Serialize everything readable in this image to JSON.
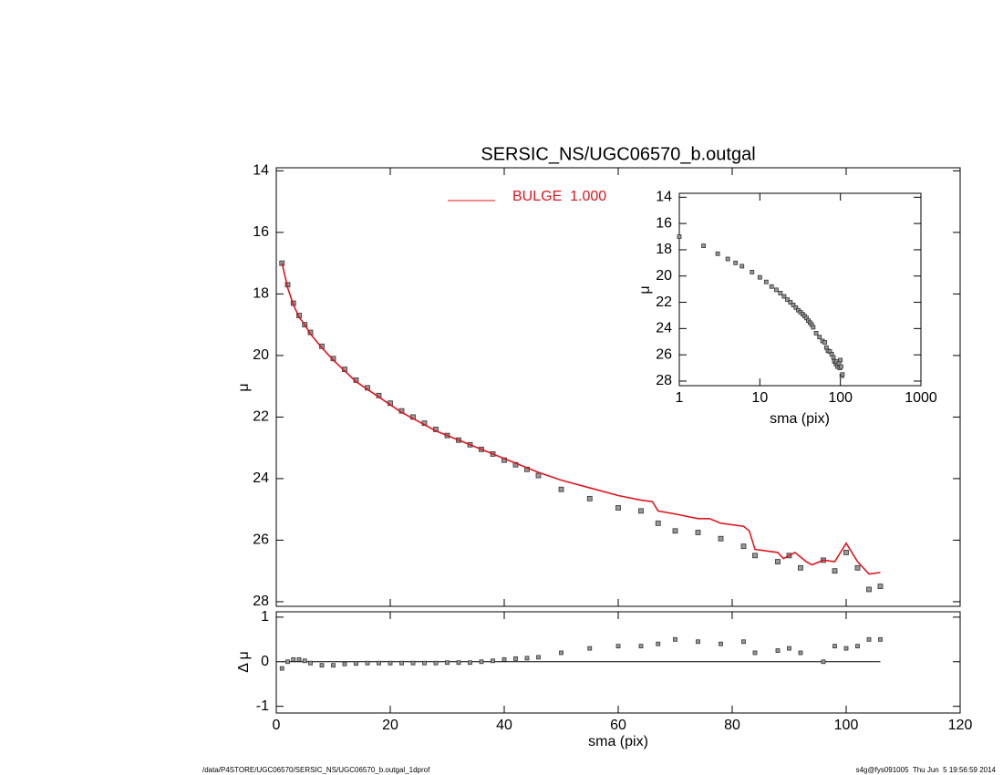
{
  "chart_data": [
    {
      "type": "line",
      "title": "SERSIC_NS/UGC06570_b.outgal",
      "ylabel": "μ",
      "xlim": [
        0,
        120
      ],
      "ylim": [
        28.15,
        13.9
      ],
      "yticks": [
        14,
        16,
        18,
        20,
        22,
        24,
        26,
        28
      ],
      "legend": "top",
      "series": [
        {
          "style": "squares",
          "color": "#999999",
          "x": [
            1,
            2,
            3,
            4,
            5,
            6,
            8,
            10,
            12,
            14,
            16,
            18,
            20,
            22,
            24,
            26,
            28,
            30,
            32,
            34,
            36,
            38,
            40,
            42,
            44,
            46,
            50,
            55,
            60,
            64,
            67,
            70,
            74,
            78,
            82,
            84,
            88,
            90,
            92,
            96,
            98,
            100,
            102,
            104,
            106
          ],
          "values": [
            17.0,
            17.7,
            18.3,
            18.7,
            19.0,
            19.25,
            19.7,
            20.1,
            20.45,
            20.8,
            21.05,
            21.3,
            21.55,
            21.8,
            22.0,
            22.2,
            22.4,
            22.6,
            22.75,
            22.9,
            23.05,
            23.2,
            23.4,
            23.55,
            23.7,
            23.9,
            24.35,
            24.65,
            24.95,
            25.05,
            25.45,
            25.7,
            25.75,
            25.95,
            26.2,
            26.5,
            26.7,
            26.5,
            26.9,
            26.65,
            27.0,
            26.4,
            26.9,
            27.6,
            27.5
          ]
        },
        {
          "style": "line",
          "name": "BULGE  1.000",
          "color": "#e0141e",
          "x": [
            1,
            2,
            3,
            4,
            5,
            6,
            8,
            10,
            12,
            14,
            16,
            18,
            20,
            22,
            24,
            26,
            28,
            30,
            32,
            34,
            36,
            38,
            40,
            46,
            50,
            55,
            60,
            64,
            66,
            67,
            70,
            74,
            76,
            78,
            82,
            83,
            84,
            88,
            89,
            91,
            93,
            94,
            96,
            98,
            100,
            102,
            104,
            106
          ],
          "values": [
            17.0,
            17.8,
            18.35,
            18.75,
            19.0,
            19.3,
            19.75,
            20.15,
            20.5,
            20.85,
            21.1,
            21.35,
            21.6,
            21.85,
            22.05,
            22.25,
            22.45,
            22.6,
            22.75,
            22.9,
            23.05,
            23.2,
            23.35,
            23.8,
            24.05,
            24.3,
            24.55,
            24.7,
            24.75,
            25.05,
            25.15,
            25.3,
            25.3,
            25.45,
            25.55,
            25.7,
            26.3,
            26.4,
            26.6,
            26.4,
            26.7,
            26.8,
            26.65,
            26.7,
            26.1,
            26.7,
            27.1,
            27.05
          ]
        }
      ]
    },
    {
      "type": "scatter",
      "xlabel": "sma (pix)",
      "ylabel": "Δ μ",
      "xlim": [
        0,
        120
      ],
      "xticks": [
        0,
        20,
        40,
        60,
        80,
        100,
        120
      ],
      "ylim": [
        -1.15,
        1.12
      ],
      "yticks": [
        -1,
        0,
        1
      ],
      "color": "#999999",
      "x": [
        1,
        2,
        3,
        4,
        5,
        6,
        8,
        10,
        12,
        14,
        16,
        18,
        20,
        22,
        24,
        26,
        28,
        30,
        32,
        34,
        36,
        38,
        40,
        42,
        44,
        46,
        50,
        55,
        60,
        64,
        67,
        70,
        74,
        78,
        82,
        84,
        88,
        90,
        92,
        96,
        98,
        100,
        102,
        104,
        106
      ],
      "values": [
        -0.15,
        0.0,
        0.05,
        0.05,
        0.02,
        -0.03,
        -0.08,
        -0.08,
        -0.05,
        -0.04,
        -0.03,
        -0.03,
        -0.03,
        -0.03,
        -0.03,
        -0.03,
        -0.03,
        -0.02,
        -0.02,
        -0.02,
        0.0,
        0.02,
        0.05,
        0.07,
        0.08,
        0.1,
        0.2,
        0.3,
        0.35,
        0.35,
        0.4,
        0.5,
        0.45,
        0.4,
        0.45,
        0.2,
        0.25,
        0.3,
        0.2,
        0.0,
        0.35,
        0.3,
        0.35,
        0.5,
        0.5
      ]
    },
    {
      "type": "scatter",
      "xlabel": "sma (pix)",
      "ylabel": "μ",
      "log_x": true,
      "xlim": [
        1,
        1000
      ],
      "xticks": [
        1,
        10,
        100,
        1000
      ],
      "ylim": [
        28.35,
        13.7
      ],
      "yticks": [
        14,
        16,
        18,
        20,
        22,
        24,
        26,
        28
      ]
    }
  ],
  "footer": {
    "left": "/data/P4STORE/UGC06570/SERSIC_NS/UGC06570_b.outgal_1dprof",
    "right": "s4g@fys091005  Thu Jun  5 19:56:59 2014"
  }
}
